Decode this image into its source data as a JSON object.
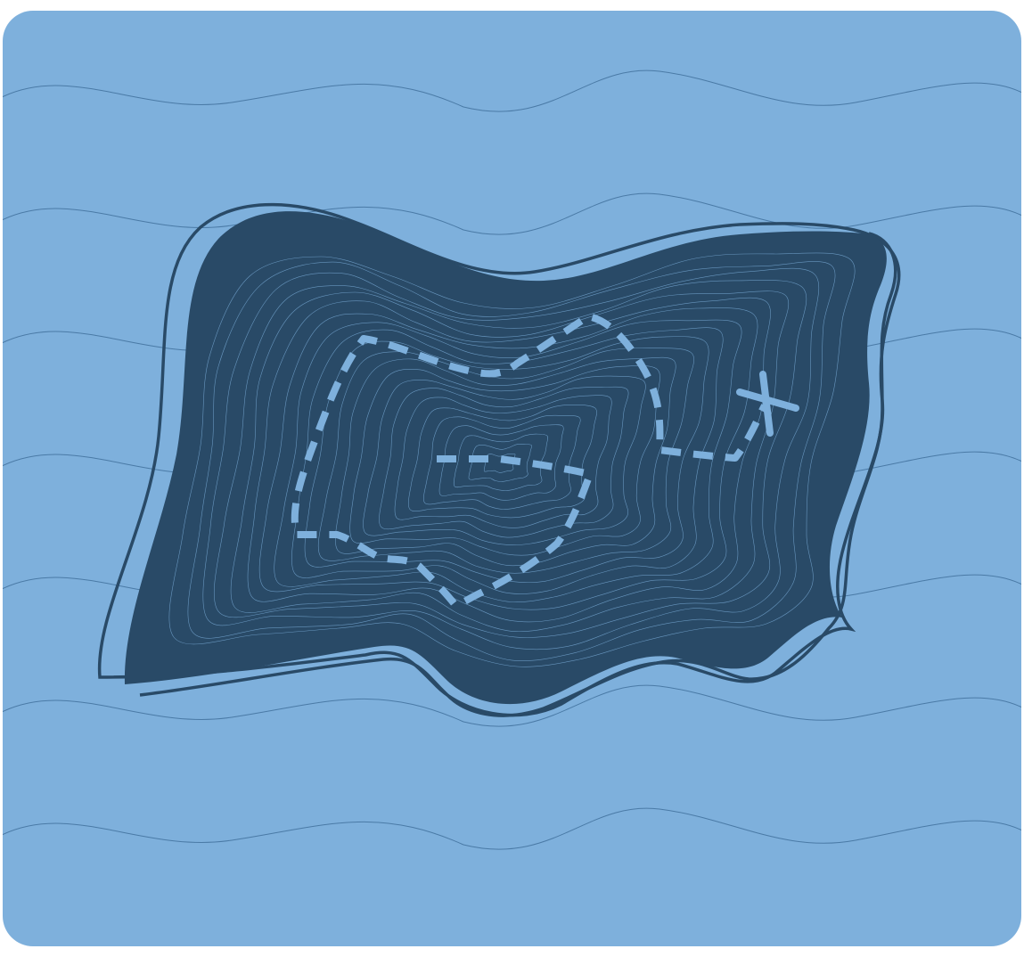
{
  "scene": {
    "type": "treasure-map-island-illustration",
    "colors": {
      "ocean": "#7eb0dc",
      "island": "#294a67",
      "wave_line": "#4a7aa6",
      "contour_line": "#7eb0dc",
      "trail": "#7eb0dc",
      "page_background": "#ffffff"
    },
    "marker": "x-mark-icon",
    "trail_style": "dashed",
    "wave_count": 7
  }
}
